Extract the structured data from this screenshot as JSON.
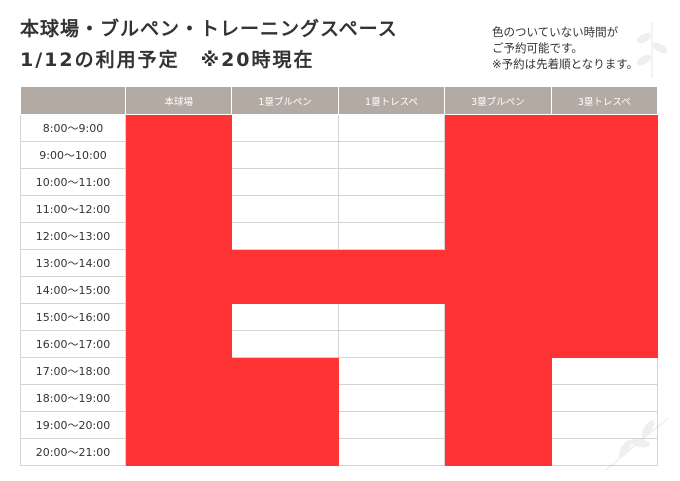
{
  "title": {
    "line1": "本球場・ブルペン・トレーニングスペース",
    "line2": "1/12の利用予定　※20時現在"
  },
  "note": {
    "line1": "色のついていない時間が",
    "line2": "ご予約可能です。",
    "line3": "※予約は先着順となります。"
  },
  "colors": {
    "booked": "#ff3333",
    "available": "#ffffff",
    "header": "#b3aba3"
  },
  "table": {
    "columns": [
      "",
      "本球場",
      "1塁ブルペン",
      "1塁トレスペ",
      "3塁ブルペン",
      "3塁トレスペ"
    ],
    "rows": [
      {
        "time": "8:00〜9:00",
        "status": [
          "booked",
          "available",
          "available",
          "booked",
          "booked"
        ]
      },
      {
        "time": "9:00〜10:00",
        "status": [
          "booked",
          "available",
          "available",
          "booked",
          "booked"
        ]
      },
      {
        "time": "10:00〜11:00",
        "status": [
          "booked",
          "available",
          "available",
          "booked",
          "booked"
        ]
      },
      {
        "time": "11:00〜12:00",
        "status": [
          "booked",
          "available",
          "available",
          "booked",
          "booked"
        ]
      },
      {
        "time": "12:00〜13:00",
        "status": [
          "booked",
          "available",
          "available",
          "booked",
          "booked"
        ]
      },
      {
        "time": "13:00〜14:00",
        "status": [
          "booked",
          "booked",
          "booked",
          "booked",
          "booked"
        ]
      },
      {
        "time": "14:00〜15:00",
        "status": [
          "booked",
          "booked",
          "booked",
          "booked",
          "booked"
        ]
      },
      {
        "time": "15:00〜16:00",
        "status": [
          "booked",
          "available",
          "available",
          "booked",
          "booked"
        ]
      },
      {
        "time": "16:00〜17:00",
        "status": [
          "booked",
          "available",
          "available",
          "booked",
          "booked"
        ]
      },
      {
        "time": "17:00〜18:00",
        "status": [
          "booked",
          "booked",
          "available",
          "booked",
          "available"
        ]
      },
      {
        "time": "18:00〜19:00",
        "status": [
          "booked",
          "booked",
          "available",
          "booked",
          "available"
        ]
      },
      {
        "time": "19:00〜20:00",
        "status": [
          "booked",
          "booked",
          "available",
          "booked",
          "available"
        ]
      },
      {
        "time": "20:00〜21:00",
        "status": [
          "booked",
          "booked",
          "available",
          "booked",
          "available"
        ]
      }
    ]
  }
}
